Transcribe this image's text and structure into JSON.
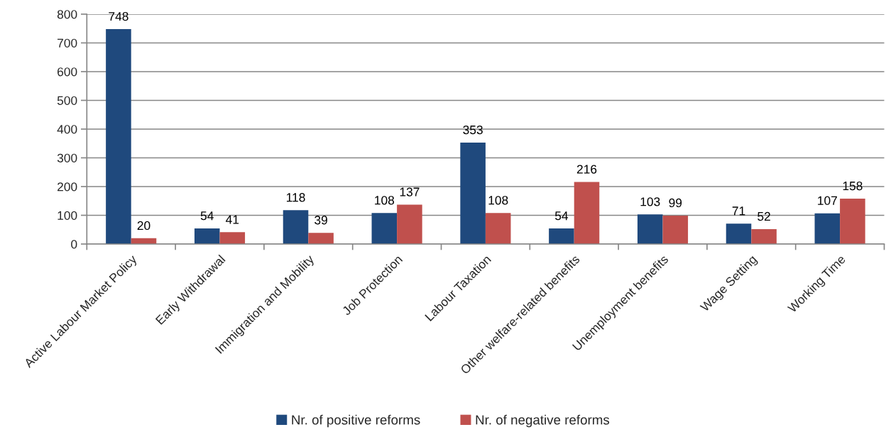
{
  "chart_data": {
    "type": "bar",
    "categories": [
      "Active Labour Market Policy",
      "Early Withdrawal",
      "Immigration and Mobility",
      "Job Protection",
      "Labour Taxation",
      "Other welfare-related benefits",
      "Unemployment benefits",
      "Wage Setting",
      "Working Time"
    ],
    "series": [
      {
        "name": "Nr. of positive reforms",
        "color": "#1f497d",
        "values": [
          748,
          54,
          118,
          108,
          353,
          54,
          103,
          71,
          107
        ]
      },
      {
        "name": "Nr. of negative reforms",
        "color": "#c0504d",
        "values": [
          20,
          41,
          39,
          137,
          108,
          216,
          99,
          52,
          158
        ]
      }
    ],
    "ylim": [
      0,
      800
    ],
    "yticks": [
      0,
      100,
      200,
      300,
      400,
      500,
      600,
      700,
      800
    ],
    "grid": "y",
    "legend": "bottom",
    "data_labels": true
  }
}
